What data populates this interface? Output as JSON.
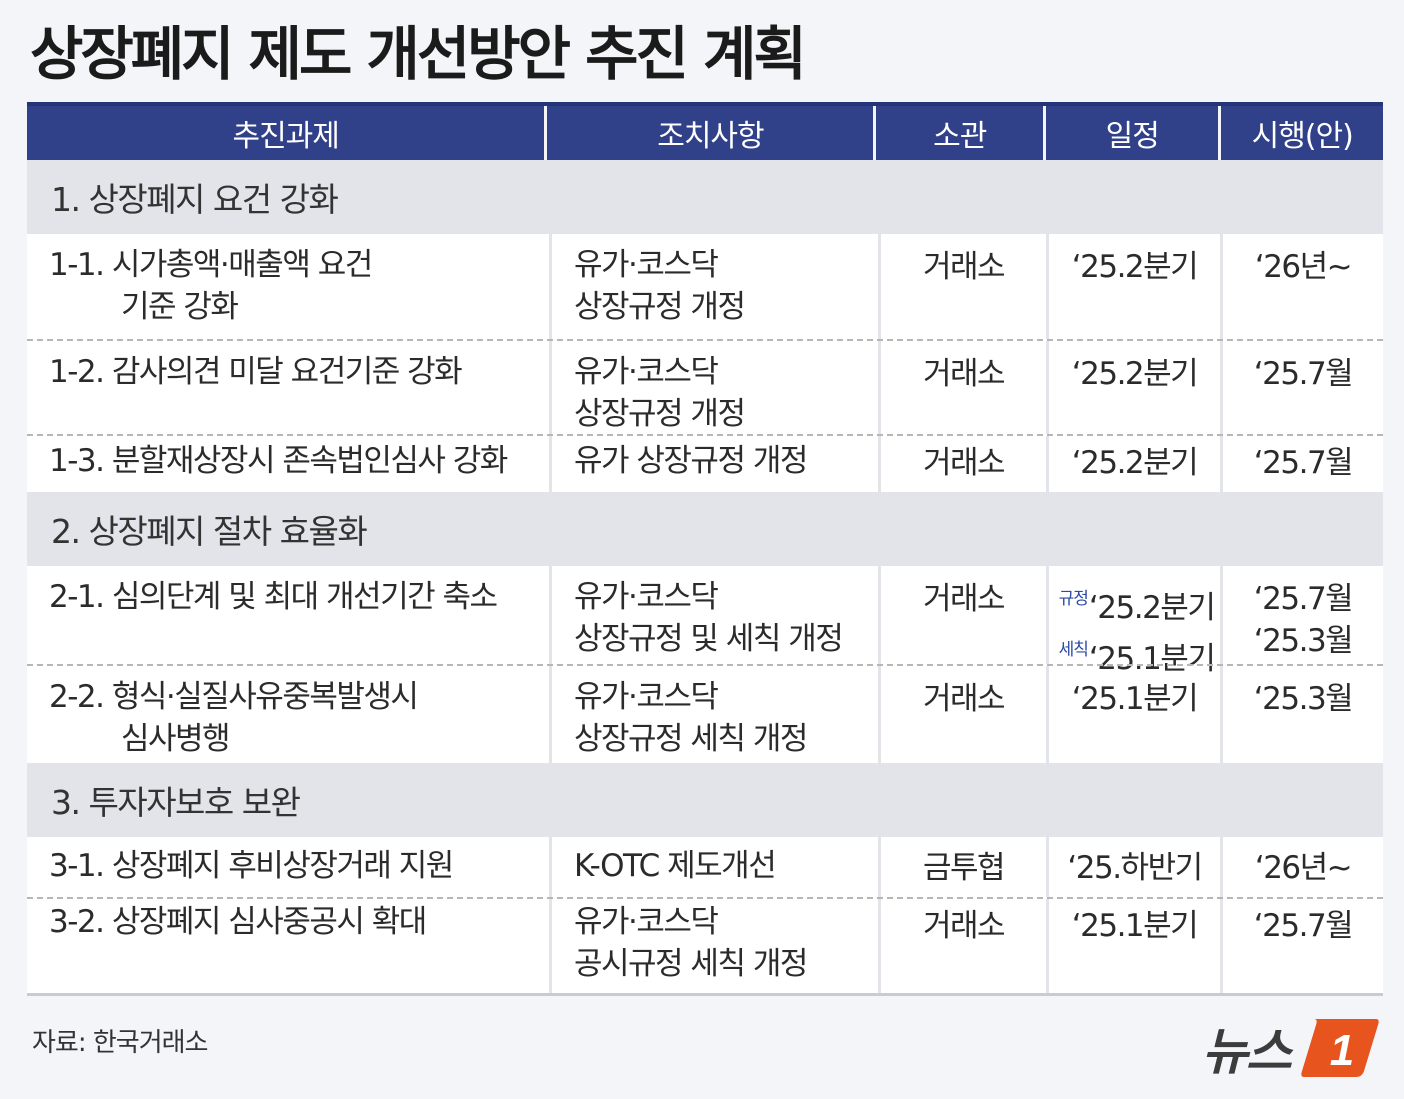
{
  "title": "상장폐지 제도 개선방안 추진 계획",
  "header": {
    "task": "추진과제",
    "action": "조치사항",
    "owner": "소관",
    "schedule": "일정",
    "effective": "시행(안)"
  },
  "sections": [
    {
      "title": "1. 상장폐지 요건 강화",
      "rows": [
        {
          "task1": "1-1. 시가총액·매출액 요건",
          "task2": "기준 강화",
          "action1": "유가·코스닥",
          "action2": "상장규정 개정",
          "owner": "거래소",
          "schedule1": "‘25.2분기",
          "effective1": "‘26년~"
        },
        {
          "task1": "1-2. 감사의견 미달 요건기준 강화",
          "action1": "유가·코스닥",
          "action2": "상장규정 개정",
          "owner": "거래소",
          "schedule1": "‘25.2분기",
          "effective1": "‘25.7월"
        },
        {
          "task1": "1-3. 분할재상장시 존속법인심사 강화",
          "action1": "유가 상장규정 개정",
          "owner": "거래소",
          "schedule1": "‘25.2분기",
          "effective1": "‘25.7월"
        }
      ]
    },
    {
      "title": "2. 상장폐지 절차 효율화",
      "rows": [
        {
          "task1": "2-1. 심의단계 및 최대 개선기간 축소",
          "action1": "유가·코스닥",
          "action2": "상장규정 및 세칙 개정",
          "owner": "거래소",
          "tag1": "규정",
          "schedule1": "‘25.2분기",
          "tag2": "세칙",
          "schedule2": "‘25.1분기",
          "effective1": "‘25.7월",
          "effective2": "‘25.3월"
        },
        {
          "task1": "2-2. 형식·실질사유중복발생시",
          "task2": "심사병행",
          "action1": "유가·코스닥",
          "action2": "상장규정 세칙 개정",
          "owner": "거래소",
          "schedule1": "‘25.1분기",
          "effective1": "‘25.3월"
        }
      ]
    },
    {
      "title": "3. 투자자보호 보완",
      "rows": [
        {
          "task1": "3-1. 상장폐지 후비상장거래 지원",
          "action1": "K-OTC 제도개선",
          "owner": "금투협",
          "schedule1": "‘25.하반기",
          "effective1": "‘26년~"
        },
        {
          "task1": "3-2. 상장폐지 심사중공시 확대",
          "action1": "유가·코스닥",
          "action2": "공시규정 세칙 개정",
          "owner": "거래소",
          "schedule1": "‘25.1분기",
          "effective1": "‘25.7월"
        }
      ]
    }
  ],
  "source": "자료: 한국거래소",
  "logo": {
    "text": "뉴스",
    "mark": "1",
    "accent": "#e8541e"
  },
  "colors": {
    "header_bg": "#30418a",
    "section_bg": "#e3e4ea",
    "page_bg": "#f4f5f9"
  }
}
